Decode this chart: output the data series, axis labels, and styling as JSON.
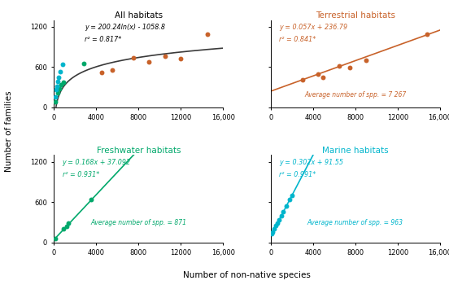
{
  "all_habitats": {
    "title": "All habitats",
    "title_color": "black",
    "equation": "y = 200.24ln(x) - 1058.8",
    "r2": "r² = 0.817*",
    "equation_color": "black",
    "fit_color": "#3a3a3a",
    "points_terrestrial": [
      [
        4500,
        520
      ],
      [
        5500,
        550
      ],
      [
        7500,
        730
      ],
      [
        9000,
        680
      ],
      [
        10500,
        760
      ],
      [
        12000,
        720
      ],
      [
        14500,
        1090
      ]
    ],
    "points_freshwater": [
      [
        150,
        85
      ],
      [
        350,
        210
      ],
      [
        500,
        270
      ],
      [
        700,
        330
      ],
      [
        900,
        370
      ],
      [
        2800,
        650
      ]
    ],
    "points_marine": [
      [
        100,
        150
      ],
      [
        200,
        260
      ],
      [
        300,
        310
      ],
      [
        380,
        380
      ],
      [
        460,
        440
      ],
      [
        600,
        530
      ],
      [
        800,
        640
      ]
    ],
    "color_terrestrial": "#c8622a",
    "color_freshwater": "#00a86b",
    "color_marine": "#00b5cc",
    "xlim": [
      0,
      16000
    ],
    "ylim": [
      0,
      1300
    ],
    "xticks": [
      0,
      4000,
      8000,
      12000,
      16000
    ],
    "xticklabels": [
      "0",
      "4000",
      "8000",
      "12000",
      "16,000"
    ],
    "yticks": [
      0,
      600,
      1200
    ]
  },
  "terrestrial": {
    "title": "Terrestrial habitats",
    "title_color": "#c8622a",
    "equation": "y = 0.057x + 236.79",
    "r2": "r² = 0.841*",
    "avg_text": "Average number of spp. = 7 267",
    "equation_color": "#c8622a",
    "fit_color": "#c8622a",
    "slope": 0.057,
    "intercept": 236.79,
    "points": [
      [
        3000,
        410
      ],
      [
        4500,
        490
      ],
      [
        4900,
        450
      ],
      [
        6500,
        610
      ],
      [
        7500,
        590
      ],
      [
        9000,
        700
      ],
      [
        14800,
        1090
      ]
    ],
    "xlim": [
      0,
      16000
    ],
    "ylim": [
      0,
      1300
    ],
    "xticks": [
      0,
      4000,
      8000,
      12000,
      16000
    ],
    "xticklabels": [
      "0",
      "4000",
      "8000",
      "12000",
      "16,000"
    ],
    "yticks": [
      0,
      600,
      1200
    ]
  },
  "freshwater": {
    "title": "Freshwater habitats",
    "title_color": "#00a86b",
    "equation": "y = 0.168x + 37.092",
    "r2": "r² = 0.931*",
    "avg_text": "Average number of spp. = 871",
    "equation_color": "#00a86b",
    "fit_color": "#00a86b",
    "slope": 0.168,
    "intercept": 37.092,
    "points": [
      [
        120,
        60
      ],
      [
        900,
        200
      ],
      [
        1200,
        240
      ],
      [
        1400,
        280
      ],
      [
        3500,
        640
      ]
    ],
    "xlim": [
      0,
      16000
    ],
    "ylim": [
      0,
      1300
    ],
    "xticks": [
      0,
      4000,
      8000,
      12000,
      16000
    ],
    "xticklabels": [
      "0",
      "4000",
      "8000",
      "12000",
      "16,000"
    ],
    "yticks": [
      0,
      600,
      1200
    ]
  },
  "marine": {
    "title": "Marine habitats",
    "title_color": "#00b5cc",
    "equation": "y = 0.302x + 91.55",
    "r2": "r² = 0.991*",
    "avg_text": "Average number of spp. = 963",
    "equation_color": "#00b5cc",
    "fit_color": "#00b5cc",
    "slope": 0.302,
    "intercept": 91.55,
    "points": [
      [
        100,
        125
      ],
      [
        200,
        155
      ],
      [
        350,
        200
      ],
      [
        500,
        245
      ],
      [
        650,
        290
      ],
      [
        800,
        330
      ],
      [
        1000,
        395
      ],
      [
        1200,
        455
      ],
      [
        1500,
        545
      ],
      [
        1800,
        635
      ],
      [
        2000,
        700
      ]
    ],
    "xlim": [
      0,
      16000
    ],
    "ylim": [
      0,
      1300
    ],
    "xticks": [
      0,
      4000,
      8000,
      12000,
      16000
    ],
    "xticklabels": [
      "0",
      "4000",
      "8000",
      "12000",
      "16,000"
    ],
    "yticks": [
      0,
      600,
      1200
    ]
  },
  "xlabel": "Number of non-native species",
  "ylabel": "Number of families",
  "background_color": "white",
  "point_size": 18,
  "linewidth": 1.2
}
